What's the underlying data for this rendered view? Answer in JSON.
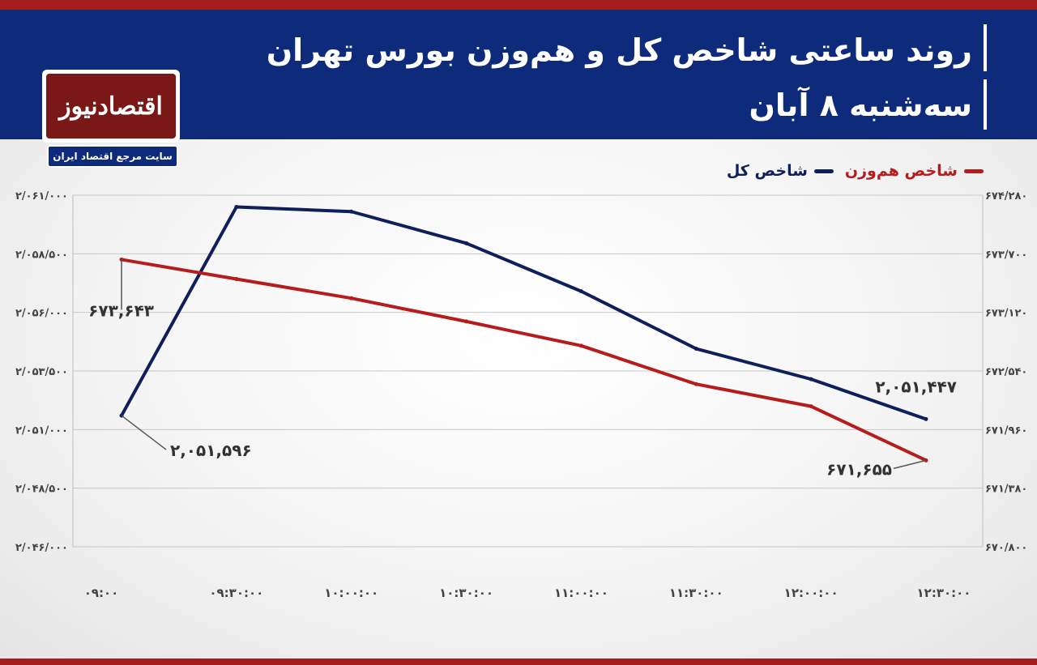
{
  "header": {
    "title": "روند ساعتی شاخص کل و هم‌وزن بورس تهران",
    "date": "سه‌شنبه ۸ آبان"
  },
  "logo": {
    "name": "اقتصادنیوز",
    "tagline": "سایت مرجع اقتصاد ایران"
  },
  "colors": {
    "header_bg": "#0e2a7a",
    "accent_red": "#a51c1c",
    "total_index_line": "#0e1f5c",
    "equal_weight_line": "#b71c1c"
  },
  "chart_data": {
    "type": "line",
    "categories": [
      "۰۹:۰۰",
      "۰۹:۳۰:۰۰",
      "۱۰:۰۰:۰۰",
      "۱۰:۳۰:۰۰",
      "۱۱:۰۰:۰۰",
      "۱۱:۳۰:۰۰",
      "۱۲:۰۰:۰۰",
      "۱۲:۳۰:۰۰"
    ],
    "series": [
      {
        "name": "شاخص کل",
        "axis": "left",
        "values": [
          2051596,
          2060500,
          2060300,
          2058950,
          2056900,
          2054450,
          2053150,
          2051447
        ]
      },
      {
        "name": "شاخص هم‌وزن",
        "axis": "right",
        "values": [
          673643,
          673450,
          673260,
          673030,
          672790,
          672410,
          672190,
          671655
        ]
      }
    ],
    "left_axis": {
      "ylim": [
        2046000,
        2061000
      ],
      "ticks": [
        2061000,
        2058500,
        2056000,
        2053500,
        2051000,
        2048500,
        2046000
      ],
      "tick_labels": [
        "۲/۰۶۱/۰۰۰",
        "۲/۰۵۸/۵۰۰",
        "۲/۰۵۶/۰۰۰",
        "۲/۰۵۳/۵۰۰",
        "۲/۰۵۱/۰۰۰",
        "۲/۰۴۸/۵۰۰",
        "۲/۰۴۶/۰۰۰"
      ]
    },
    "right_axis": {
      "ylim": [
        670800,
        674280
      ],
      "ticks": [
        674280,
        673700,
        673120,
        672540,
        671960,
        671380,
        670800
      ],
      "tick_labels": [
        "۶۷۴/۲۸۰",
        "۶۷۳/۷۰۰",
        "۶۷۳/۱۲۰",
        "۶۷۲/۵۴۰",
        "۶۷۱/۹۶۰",
        "۶۷۱/۳۸۰",
        "۶۷۰/۸۰۰"
      ]
    },
    "annotations": [
      {
        "series": 0,
        "point": 0,
        "text": "۲,۰۵۱,۵۹۶"
      },
      {
        "series": 0,
        "point": 7,
        "text": "۲,۰۵۱,۴۴۷"
      },
      {
        "series": 1,
        "point": 0,
        "text": "۶۷۳,۶۴۳"
      },
      {
        "series": 1,
        "point": 7,
        "text": "۶۷۱,۶۵۵"
      }
    ],
    "grid": true,
    "legend": "top-right"
  }
}
